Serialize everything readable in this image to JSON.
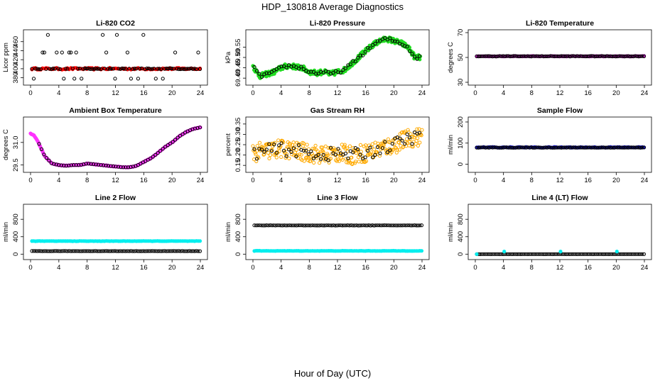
{
  "figure": {
    "title": "HDP_130818  Average Diagnostics",
    "xlabel": "Hour of Day (UTC)"
  },
  "chart_data": [
    {
      "type": "scatter",
      "title": "Li-820 CO2",
      "ylabel": "Licor ppm",
      "xlim": [
        0,
        24
      ],
      "ylim": [
        370,
        480
      ],
      "xticks": [
        "0",
        "4",
        "8",
        "12",
        "16",
        "20",
        "24"
      ],
      "yticks": [
        "380",
        "400",
        "420",
        "440",
        "460"
      ],
      "series": [
        {
          "name": "co2",
          "color": "#ff0000",
          "shape": "dot",
          "gen": "band",
          "center": 400,
          "spread": 2,
          "drift": 0
        },
        {
          "name": "co2-black",
          "color": "#000000",
          "shape": "ring",
          "gen": "levels",
          "levels": [
            378,
            400,
            436,
            475
          ]
        }
      ]
    },
    {
      "type": "scatter",
      "title": "Li-820 Pressure",
      "ylabel": "kPa",
      "xlim": [
        0,
        24
      ],
      "ylim": [
        69.38,
        69.62
      ],
      "xticks": [
        "0",
        "4",
        "8",
        "12",
        "16",
        "20",
        "24"
      ],
      "yticks": [
        "69.40",
        "69.45",
        "69.50",
        "69.55"
      ],
      "series": [
        {
          "name": "pressure",
          "color": "#22dd22",
          "shape": "dot",
          "gen": "curve",
          "x": [
            0,
            0.5,
            1,
            2,
            3,
            4,
            5,
            6,
            7,
            8,
            9,
            10,
            11,
            12,
            13,
            14,
            15,
            16,
            17,
            18,
            19,
            20,
            21,
            22,
            23,
            23.8
          ],
          "y": [
            69.46,
            69.43,
            69.41,
            69.42,
            69.43,
            69.45,
            69.46,
            69.455,
            69.45,
            69.43,
            69.425,
            69.43,
            69.42,
            69.43,
            69.44,
            69.47,
            69.5,
            69.53,
            69.56,
            69.58,
            69.59,
            69.58,
            69.57,
            69.55,
            69.5,
            69.5
          ],
          "spread": 0.012
        },
        {
          "name": "pressure-black",
          "color": "#000000",
          "shape": "ring",
          "gen": "curve-sparse"
        }
      ]
    },
    {
      "type": "scatter",
      "title": "Li-820 Temperature",
      "ylabel": "degrees C",
      "xlim": [
        0,
        24
      ],
      "ylim": [
        30,
        70
      ],
      "xticks": [
        "0",
        "4",
        "8",
        "12",
        "16",
        "20",
        "24"
      ],
      "yticks": [
        "30",
        "50",
        "70"
      ],
      "series": [
        {
          "name": "temp",
          "color": "#cc22cc",
          "shape": "dot",
          "gen": "band",
          "center": 51,
          "spread": 0.2,
          "drift": 0
        },
        {
          "name": "temp-black",
          "color": "#000000",
          "shape": "ring",
          "gen": "band",
          "center": 51,
          "spread": 0.2,
          "drift": 0
        }
      ]
    },
    {
      "type": "scatter",
      "title": "Ambient Box Temperature",
      "ylabel": "degrees C",
      "xlim": [
        0,
        24
      ],
      "ylim": [
        29.2,
        32.5
      ],
      "xticks": [
        "0",
        "4",
        "8",
        "12",
        "16",
        "20",
        "24"
      ],
      "yticks": [
        "29.5",
        "31.0"
      ],
      "series": [
        {
          "name": "ambient",
          "color": "#ff33ff",
          "shape": "dot",
          "gen": "curve",
          "x": [
            0,
            0.5,
            1,
            1.5,
            2,
            3,
            4,
            5,
            6,
            7,
            8,
            9,
            10,
            11,
            12,
            13,
            14,
            15,
            16,
            17,
            18,
            19,
            20,
            21,
            22,
            23,
            24
          ],
          "y": [
            31.6,
            31.45,
            31.1,
            30.6,
            30.1,
            29.6,
            29.5,
            29.45,
            29.5,
            29.5,
            29.6,
            29.55,
            29.5,
            29.45,
            29.4,
            29.35,
            29.35,
            29.45,
            29.7,
            29.95,
            30.3,
            30.7,
            31.0,
            31.4,
            31.7,
            31.9,
            32.0
          ],
          "spread": 0.02
        },
        {
          "name": "ambient-black",
          "color": "#000000",
          "shape": "ring",
          "gen": "curve-sparse-late"
        }
      ]
    },
    {
      "type": "scatter",
      "title": "Gas Stream RH",
      "ylabel": "percent",
      "xlim": [
        0,
        24
      ],
      "ylim": [
        0.13,
        0.37
      ],
      "xticks": [
        "0",
        "4",
        "8",
        "12",
        "16",
        "20",
        "24"
      ],
      "yticks": [
        "0.15",
        "0.20",
        "0.25",
        "0.30",
        "0.35"
      ],
      "series": [
        {
          "name": "rh",
          "color": "#ffaa00",
          "shape": "ring",
          "gen": "curve",
          "x": [
            0,
            2,
            4,
            6,
            8,
            10,
            12,
            14,
            16,
            18,
            20,
            22,
            24
          ],
          "y": [
            0.21,
            0.22,
            0.23,
            0.22,
            0.21,
            0.2,
            0.21,
            0.2,
            0.21,
            0.23,
            0.25,
            0.28,
            0.29
          ],
          "spread": 0.045
        },
        {
          "name": "rh-black",
          "color": "#000000",
          "shape": "ring",
          "gen": "curve-sparse"
        }
      ]
    },
    {
      "type": "scatter",
      "title": "Sample Flow",
      "ylabel": "ml/min",
      "xlim": [
        0,
        24
      ],
      "ylim": [
        -25,
        210
      ],
      "xticks": [
        "0",
        "4",
        "8",
        "12",
        "16",
        "20",
        "24"
      ],
      "yticks": [
        "0",
        "100",
        "200"
      ],
      "series": [
        {
          "name": "sample",
          "color": "#1a1acc",
          "shape": "dot",
          "gen": "band",
          "center": 80,
          "spread": 2,
          "drift": 0
        },
        {
          "name": "sample-black",
          "color": "#000000",
          "shape": "ring",
          "gen": "band",
          "center": 79,
          "spread": 1,
          "drift": 0
        }
      ]
    },
    {
      "type": "scatter",
      "title": "Line 2 Flow",
      "ylabel": "ml/min",
      "xlim": [
        0,
        24
      ],
      "ylim": [
        -60,
        1080
      ],
      "xticks": [
        "0",
        "4",
        "8",
        "12",
        "16",
        "20",
        "24"
      ],
      "yticks": [
        "0",
        "400",
        "800"
      ],
      "series": [
        {
          "name": "line2-cyan",
          "color": "#00eeee",
          "shape": "dot",
          "gen": "band",
          "center": 300,
          "spread": 3,
          "drift": 0
        },
        {
          "name": "line2-black",
          "color": "#000000",
          "shape": "ring",
          "gen": "band",
          "center": 70,
          "spread": 2,
          "drift": 0
        }
      ]
    },
    {
      "type": "scatter",
      "title": "Line 3 Flow",
      "ylabel": "ml/min",
      "xlim": [
        0,
        24
      ],
      "ylim": [
        -60,
        1080
      ],
      "xticks": [
        "0",
        "4",
        "8",
        "12",
        "16",
        "20",
        "24"
      ],
      "yticks": [
        "0",
        "400",
        "800"
      ],
      "series": [
        {
          "name": "line3-cyan",
          "color": "#00eeee",
          "shape": "dot",
          "gen": "band",
          "center": 75,
          "spread": 3,
          "drift": 0
        },
        {
          "name": "line3-black",
          "color": "#000000",
          "shape": "ring",
          "gen": "band",
          "center": 660,
          "spread": 3,
          "drift": 0
        }
      ]
    },
    {
      "type": "scatter",
      "title": "Line 4 (LT) Flow",
      "ylabel": "ml/min",
      "xlim": [
        0,
        24
      ],
      "ylim": [
        -60,
        1080
      ],
      "xticks": [
        "0",
        "4",
        "8",
        "12",
        "16",
        "20",
        "24"
      ],
      "yticks": [
        "0",
        "400",
        "800"
      ],
      "series": [
        {
          "name": "line4-black",
          "color": "#000000",
          "shape": "ring",
          "gen": "band",
          "center": 0,
          "spread": 1,
          "drift": 0
        },
        {
          "name": "line4-cyan",
          "color": "#00eeee",
          "shape": "dot",
          "gen": "spikes",
          "x": [
            0.2,
            4.1,
            12.1,
            20.1
          ],
          "y": [
            0,
            60,
            60,
            60
          ]
        }
      ]
    }
  ]
}
